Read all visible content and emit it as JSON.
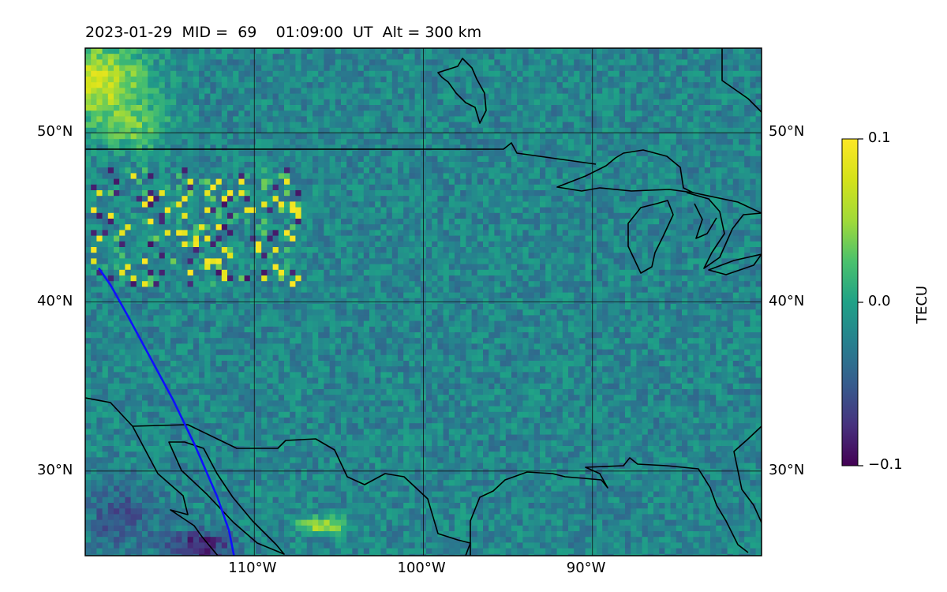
{
  "title": {
    "date": "2023-01-29",
    "mid_label": "MID =",
    "mid_value": "69",
    "time": "01:09:00",
    "time_unit": "UT",
    "alt_label": "Alt =",
    "alt_value": "300 km"
  },
  "map": {
    "lon_range": [
      -120,
      -80
    ],
    "lat_range": [
      25,
      55
    ],
    "lat_ticks": [
      {
        "value": 50,
        "label": "50°N"
      },
      {
        "value": 40,
        "label": "40°N"
      },
      {
        "value": 30,
        "label": "30°N"
      }
    ],
    "lon_ticks": [
      {
        "value": -110,
        "label": "110°W"
      },
      {
        "value": -100,
        "label": "100°W"
      },
      {
        "value": -90,
        "label": "90°W"
      }
    ],
    "gridlines": true,
    "coastline_color": "#000000",
    "track_color": "#1010ff",
    "track": [
      [
        -119.2,
        42.0
      ],
      [
        -118.5,
        41.0
      ],
      [
        -117.5,
        39.2
      ],
      [
        -116.2,
        36.8
      ],
      [
        -114.8,
        34.2
      ],
      [
        -113.5,
        31.5
      ],
      [
        -112.2,
        28.5
      ],
      [
        -111.5,
        26.5
      ],
      [
        -111.2,
        25.0
      ]
    ]
  },
  "colorbar": {
    "title": "TECU",
    "min": -0.1,
    "max": 0.1,
    "ticks": [
      {
        "value": 0.1,
        "label": "0.1"
      },
      {
        "value": 0.0,
        "label": "0.0"
      },
      {
        "value": -0.1,
        "label": "−0.1"
      }
    ],
    "colormap": "viridis"
  }
}
